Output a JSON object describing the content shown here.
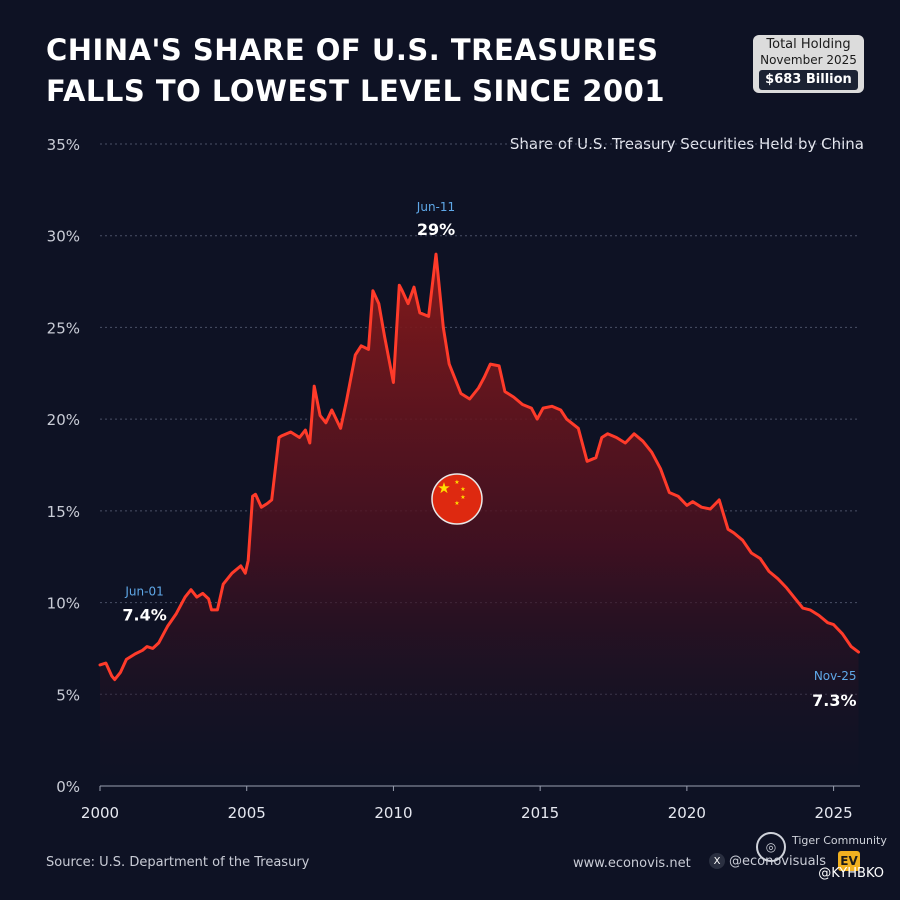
{
  "title": {
    "line1": "CHINA'S SHARE OF U.S. TREASURIES",
    "line2": "FALLS TO LOWEST LEVEL SINCE 2001"
  },
  "holding_box": {
    "label": "Total Holding",
    "date": "November 2025",
    "value": "$683 Billion"
  },
  "subtitle": "Share of U.S. Treasury Securities Held by China",
  "colors": {
    "background": "#0e1224",
    "line": "#ff3b2a",
    "annotation_date": "#5fa8e8",
    "grid": "#4a5066"
  },
  "chart_data": {
    "type": "area",
    "title": "Share of U.S. Treasury Securities Held by China",
    "xlabel": "",
    "ylabel": "",
    "xlim": [
      2000,
      2025.9
    ],
    "ylim": [
      0,
      35
    ],
    "x_ticks": [
      2000,
      2005,
      2010,
      2015,
      2020,
      2025
    ],
    "x_tick_labels": [
      "2000",
      "2005",
      "2010",
      "2015",
      "2020",
      "2025"
    ],
    "y_ticks": [
      0,
      5,
      10,
      15,
      20,
      25,
      30,
      35
    ],
    "y_tick_labels": [
      "0%",
      "5%",
      "10%",
      "15%",
      "20%",
      "25%",
      "30%",
      "35%"
    ],
    "grid": true,
    "series": [
      {
        "name": "Share of U.S. Treasury Securities Held by China",
        "x": [
          2000.0,
          2000.2,
          2000.4,
          2000.5,
          2000.7,
          2000.9,
          2001.2,
          2001.45,
          2001.6,
          2001.8,
          2002.0,
          2002.3,
          2002.6,
          2002.9,
          2003.1,
          2003.3,
          2003.5,
          2003.7,
          2003.8,
          2004.0,
          2004.2,
          2004.5,
          2004.8,
          2004.95,
          2005.05,
          2005.2,
          2005.3,
          2005.5,
          2005.7,
          2005.85,
          2006.1,
          2006.2,
          2006.5,
          2006.8,
          2007.0,
          2007.15,
          2007.3,
          2007.5,
          2007.7,
          2007.9,
          2008.2,
          2008.4,
          2008.7,
          2008.9,
          2009.15,
          2009.3,
          2009.5,
          2009.7,
          2010.0,
          2010.2,
          2010.3,
          2010.5,
          2010.7,
          2010.9,
          2011.2,
          2011.45,
          2011.7,
          2011.9,
          2012.1,
          2012.3,
          2012.6,
          2012.9,
          2013.1,
          2013.3,
          2013.6,
          2013.8,
          2014.1,
          2014.4,
          2014.7,
          2014.9,
          2015.1,
          2015.4,
          2015.7,
          2015.9,
          2016.3,
          2016.6,
          2016.9,
          2017.1,
          2017.3,
          2017.6,
          2017.9,
          2018.2,
          2018.5,
          2018.8,
          2019.1,
          2019.4,
          2019.7,
          2020.0,
          2020.2,
          2020.5,
          2020.8,
          2021.1,
          2021.4,
          2021.6,
          2021.9,
          2022.2,
          2022.5,
          2022.8,
          2023.1,
          2023.4,
          2023.7,
          2023.95,
          2024.2,
          2024.5,
          2024.8,
          2025.0,
          2025.3,
          2025.6,
          2025.85
        ],
        "values": [
          6.6,
          6.7,
          6.0,
          5.8,
          6.2,
          6.9,
          7.2,
          7.4,
          7.6,
          7.5,
          7.8,
          8.7,
          9.4,
          10.3,
          10.7,
          10.3,
          10.5,
          10.2,
          9.6,
          9.6,
          11.0,
          11.6,
          12.0,
          11.6,
          12.3,
          15.8,
          15.9,
          15.2,
          15.4,
          15.6,
          19.0,
          19.1,
          19.3,
          19.0,
          19.4,
          18.7,
          21.8,
          20.2,
          19.8,
          20.5,
          19.5,
          21.0,
          23.5,
          24.0,
          23.8,
          27.0,
          26.3,
          24.5,
          22.0,
          27.3,
          27.0,
          26.3,
          27.2,
          25.8,
          25.6,
          29.0,
          25.0,
          23.0,
          22.2,
          21.4,
          21.1,
          21.7,
          22.3,
          23.0,
          22.9,
          21.5,
          21.2,
          20.8,
          20.6,
          20.0,
          20.6,
          20.7,
          20.5,
          20.0,
          19.5,
          17.7,
          17.9,
          19.0,
          19.2,
          19.0,
          18.7,
          19.2,
          18.8,
          18.2,
          17.3,
          16.0,
          15.8,
          15.3,
          15.5,
          15.2,
          15.1,
          15.6,
          14.0,
          13.8,
          13.4,
          12.7,
          12.4,
          11.7,
          11.3,
          10.8,
          10.2,
          9.7,
          9.6,
          9.3,
          8.9,
          8.8,
          8.3,
          7.6,
          7.3
        ]
      }
    ],
    "annotations": [
      {
        "date": "Jun-01",
        "value": "7.4%",
        "x": 2001.45,
        "y": 7.4
      },
      {
        "date": "Jun-11",
        "value": "29%",
        "x": 2011.45,
        "y": 29.0
      },
      {
        "date": "Nov-25",
        "value": "7.3%",
        "x": 2025.85,
        "y": 7.3
      }
    ]
  },
  "footer": {
    "source": "Source: U.S. Department of the Treasury",
    "website": "www.econovis.net",
    "handle": "@econovisuals",
    "logo_text": "EV",
    "community": "Tiger Community",
    "watermark": "@KYHBKO"
  }
}
